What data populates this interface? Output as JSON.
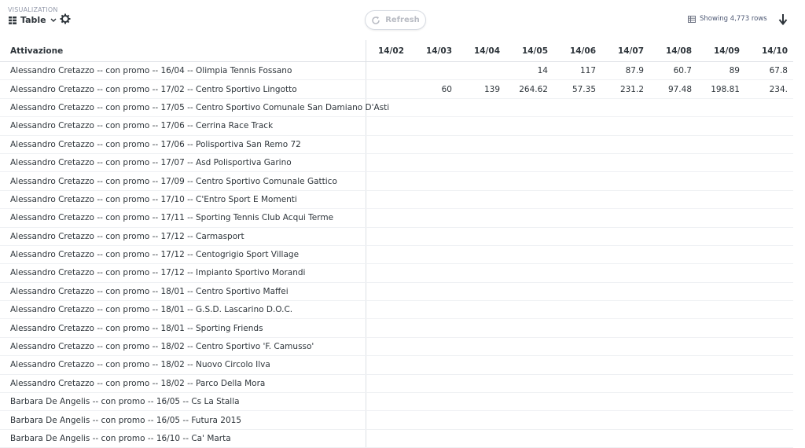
{
  "header": {
    "label": "VISUALIZATION",
    "viz": "Table",
    "refresh": "Refresh",
    "row_count": "Showing 4,773 rows"
  },
  "table": {
    "columns": [
      "Attivazione",
      "14/02",
      "14/03",
      "14/04",
      "14/05",
      "14/06",
      "14/07",
      "14/08",
      "14/09",
      "14/10"
    ],
    "rows": [
      [
        "Alessandro Cretazzo -- con promo -- 16/04 -- Olimpia Tennis Fossano",
        null,
        null,
        null,
        "14",
        "117",
        "87.9",
        "60.7",
        "89",
        "67.8"
      ],
      [
        "Alessandro Cretazzo -- con promo -- 17/02 -- Centro Sportivo Lingotto",
        null,
        "60",
        "139",
        "264.62",
        "57.35",
        "231.2",
        "97.48",
        "198.81",
        "234."
      ],
      [
        "Alessandro Cretazzo -- con promo -- 17/05 -- Centro Sportivo Comunale San Damiano D'Asti",
        null,
        null,
        null,
        null,
        null,
        null,
        null,
        null,
        null
      ],
      [
        "Alessandro Cretazzo -- con promo -- 17/06 -- Cerrina Race Track",
        null,
        null,
        null,
        null,
        null,
        null,
        null,
        null,
        null
      ],
      [
        "Alessandro Cretazzo -- con promo -- 17/06 -- Polisportiva San Remo 72",
        null,
        null,
        null,
        null,
        null,
        null,
        null,
        null,
        null
      ],
      [
        "Alessandro Cretazzo -- con promo -- 17/07 -- Asd Polisportiva Garino",
        null,
        null,
        null,
        null,
        null,
        null,
        null,
        null,
        null
      ],
      [
        "Alessandro Cretazzo -- con promo -- 17/09 -- Centro Sportivo Comunale Gattico",
        null,
        null,
        null,
        null,
        null,
        null,
        null,
        null,
        null
      ],
      [
        "Alessandro Cretazzo -- con promo -- 17/10 -- C'Entro Sport E Momenti",
        null,
        null,
        null,
        null,
        null,
        null,
        null,
        null,
        null
      ],
      [
        "Alessandro Cretazzo -- con promo -- 17/11 -- Sporting Tennis Club Acqui Terme",
        null,
        null,
        null,
        null,
        null,
        null,
        null,
        null,
        null
      ],
      [
        "Alessandro Cretazzo -- con promo -- 17/12 -- Carmasport",
        null,
        null,
        null,
        null,
        null,
        null,
        null,
        null,
        null
      ],
      [
        "Alessandro Cretazzo -- con promo -- 17/12 -- Centogrigio Sport Village",
        null,
        null,
        null,
        null,
        null,
        null,
        null,
        null,
        null
      ],
      [
        "Alessandro Cretazzo -- con promo -- 17/12 -- Impianto Sportivo Morandi",
        null,
        null,
        null,
        null,
        null,
        null,
        null,
        null,
        null
      ],
      [
        "Alessandro Cretazzo -- con promo -- 18/01 -- Centro Sportivo Maffei",
        null,
        null,
        null,
        null,
        null,
        null,
        null,
        null,
        null
      ],
      [
        "Alessandro Cretazzo -- con promo -- 18/01 -- G.S.D. Lascarino D.O.C.",
        null,
        null,
        null,
        null,
        null,
        null,
        null,
        null,
        null
      ],
      [
        "Alessandro Cretazzo -- con promo -- 18/01 -- Sporting Friends",
        null,
        null,
        null,
        null,
        null,
        null,
        null,
        null,
        null
      ],
      [
        "Alessandro Cretazzo -- con promo -- 18/02 -- Centro Sportivo 'F. Camusso'",
        null,
        null,
        null,
        null,
        null,
        null,
        null,
        null,
        null
      ],
      [
        "Alessandro Cretazzo -- con promo -- 18/02 -- Nuovo Circolo Ilva",
        null,
        null,
        null,
        null,
        null,
        null,
        null,
        null,
        null
      ],
      [
        "Alessandro Cretazzo -- con promo -- 18/02 -- Parco Della Mora",
        null,
        null,
        null,
        null,
        null,
        null,
        null,
        null,
        null
      ],
      [
        "Barbara De Angelis -- con promo -- 16/05 -- Cs La Stalla",
        null,
        null,
        null,
        null,
        null,
        null,
        null,
        null,
        null
      ],
      [
        "Barbara De Angelis -- con promo -- 16/05 -- Futura 2015",
        null,
        null,
        null,
        null,
        null,
        null,
        null,
        null,
        null
      ],
      [
        "Barbara De Angelis -- con promo -- 16/10 -- Ca' Marta",
        null,
        null,
        null,
        null,
        null,
        null,
        null,
        null,
        null
      ]
    ]
  }
}
